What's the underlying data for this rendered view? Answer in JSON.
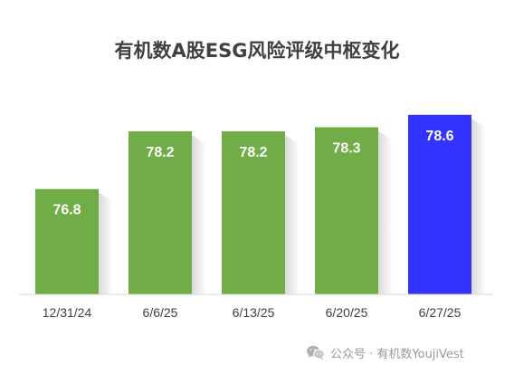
{
  "chart_data": {
    "type": "bar",
    "title": "有机数A股ESG风险评级中枢变化",
    "categories": [
      "12/31/24",
      "6/6/25",
      "6/13/25",
      "6/20/25",
      "6/27/25"
    ],
    "values": [
      76.8,
      78.2,
      78.2,
      78.3,
      78.6
    ],
    "value_labels": [
      "76.8",
      "78.2",
      "78.2",
      "78.3",
      "78.6"
    ],
    "colors": [
      "#70ad47",
      "#70ad47",
      "#70ad47",
      "#70ad47",
      "#3333ff"
    ],
    "xlabel": "",
    "ylabel": "",
    "grid": false,
    "legend": "none"
  },
  "watermark": {
    "text": "公众号 · 有机数YoujiVest",
    "icon": "wechat-icon"
  }
}
